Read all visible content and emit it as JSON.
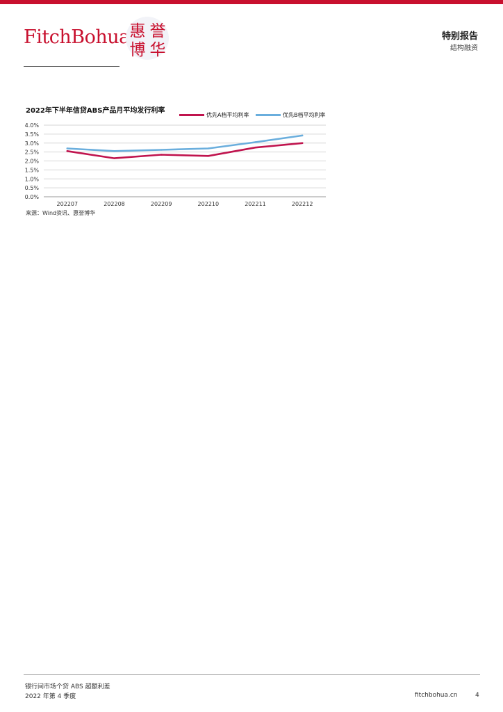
{
  "brand": {
    "logo_text": "FitchBohua",
    "seal_chars": [
      "惠",
      "誉",
      "博",
      "华"
    ],
    "accent_color": "#c8102e"
  },
  "header": {
    "title": "特别报告",
    "subtitle": "结构融资"
  },
  "chart_data": {
    "type": "line",
    "title": "2022年下半年信贷ABS产品月平均发行利率",
    "categories": [
      "202207",
      "202208",
      "202209",
      "202210",
      "202211",
      "202212"
    ],
    "series": [
      {
        "name": "优先A档平均利率",
        "color": "#c0144e",
        "values": [
          2.55,
          2.15,
          2.35,
          2.28,
          2.75,
          3.0
        ]
      },
      {
        "name": "优先B档平均利率",
        "color": "#6aaedd",
        "values": [
          2.7,
          2.55,
          2.62,
          2.7,
          3.05,
          3.42
        ]
      }
    ],
    "y_ticks": [
      "0.0%",
      "0.5%",
      "1.0%",
      "1.5%",
      "2.0%",
      "2.5%",
      "3.0%",
      "3.5%",
      "4.0%"
    ],
    "ylim": [
      0,
      4.0
    ],
    "y_unit": "%",
    "grid": true,
    "legend_position": "top-right"
  },
  "source_note": "来源：Wind资讯、惠誉博华",
  "footer": {
    "line1": "银行间市场个贷 ABS 超额利差",
    "line2": "2022 年第 4 季度",
    "website": "fitchbohua.cn",
    "page_number": "4"
  }
}
